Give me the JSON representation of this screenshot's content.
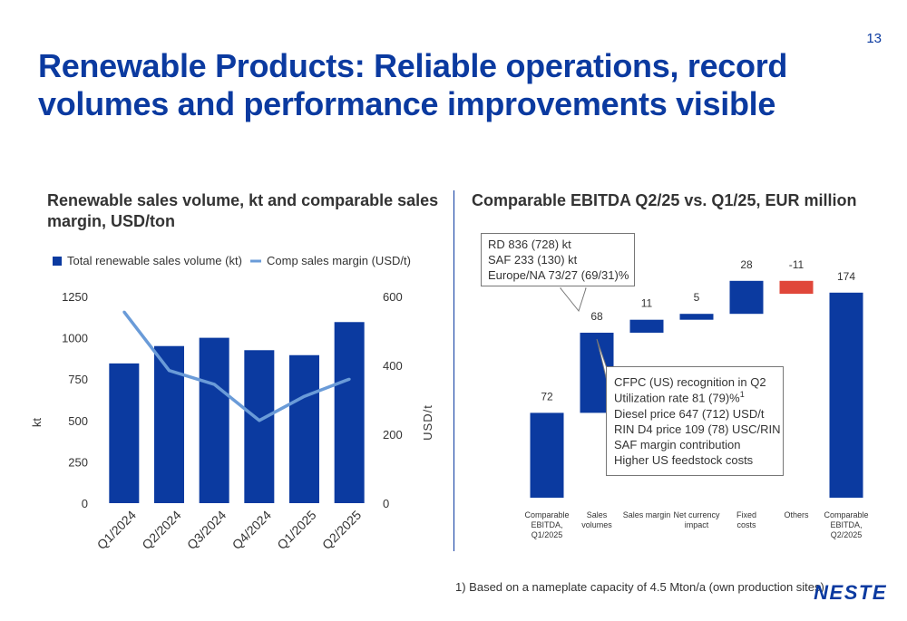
{
  "page": {
    "number": "13",
    "title": "Renewable Products: Reliable operations, record volumes and performance improvements visible",
    "footnote": "1) Based on a nameplate capacity of 4.5 Mton/a (own production sites)",
    "logo": "NESTE"
  },
  "colors": {
    "brand_blue": "#0b3aa0",
    "line_blue": "#6a9bd8",
    "negative_red": "#e0473a"
  },
  "left_chart": {
    "subtitle": "Renewable sales volume, kt and comparable sales margin, USD/ton",
    "legend": {
      "bar": "Total renewable sales volume (kt)",
      "line": "Comp sales margin (USD/t)"
    },
    "left_axis_label": "kt",
    "right_axis_label": "USD/t",
    "left_ticks": [
      "0",
      "250",
      "500",
      "750",
      "1000",
      "1250"
    ],
    "right_ticks": [
      "0",
      "200",
      "400",
      "600"
    ]
  },
  "right_chart": {
    "subtitle": "Comparable EBITDA Q2/25 vs. Q1/25, EUR million",
    "callout_top": [
      "RD 836 (728) kt",
      "SAF 233 (130) kt",
      "Europe/NA 73/27 (69/31)%"
    ],
    "callout_bottom": [
      "CFPC (US) recognition in Q2",
      "Utilization rate 81 (79)%",
      "Diesel price 647 (712) USD/t",
      "RIN D4 price 109 (78) USC/RIN",
      "SAF margin contribution",
      "Higher US feedstock costs"
    ],
    "callout_bottom_superscript": "1"
  },
  "chart_data": [
    {
      "type": "bar",
      "title": "Renewable sales volume, kt and comparable sales margin, USD/ton",
      "categories": [
        "Q1/2024",
        "Q2/2024",
        "Q3/2024",
        "Q4/2024",
        "Q1/2025",
        "Q2/2025"
      ],
      "series": [
        {
          "name": "Total renewable sales volume (kt)",
          "type": "bar",
          "axis": "left",
          "values": [
            845,
            950,
            1000,
            925,
            895,
            1095
          ]
        },
        {
          "name": "Comp sales margin (USD/t)",
          "type": "line",
          "axis": "right",
          "values": [
            555,
            385,
            345,
            240,
            310,
            360
          ]
        }
      ],
      "ylabel": "kt",
      "ylim": [
        0,
        1250
      ],
      "y2label": "USD/t",
      "y2lim": [
        0,
        600
      ],
      "grid": false,
      "legend": "top-left"
    },
    {
      "type": "bar",
      "subtype": "waterfall",
      "title": "Comparable EBITDA Q2/25 vs. Q1/25, EUR million",
      "categories": [
        "Comparable EBITDA, Q1/2025",
        "Sales volumes",
        "Sales margin",
        "Net currency impact",
        "Fixed costs",
        "Others",
        "Comparable EBITDA, Q2/2025"
      ],
      "category_lines": [
        [
          "Comparable",
          "EBITDA,",
          "Q1/2025"
        ],
        [
          "Sales",
          "volumes"
        ],
        [
          "Sales margin"
        ],
        [
          "Net currency",
          "impact"
        ],
        [
          "Fixed",
          "costs"
        ],
        [
          "Others"
        ],
        [
          "Comparable",
          "EBITDA,",
          "Q2/2025"
        ]
      ],
      "values": [
        72,
        68,
        11,
        5,
        28,
        -11,
        174
      ],
      "value_labels": [
        "72",
        "68",
        "11",
        "5",
        "28",
        "-11",
        "174"
      ],
      "kinds": [
        "total",
        "delta",
        "delta",
        "delta",
        "delta",
        "delta",
        "total"
      ]
    }
  ]
}
